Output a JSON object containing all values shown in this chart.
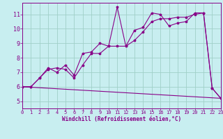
{
  "xlabel": "Windchill (Refroidissement éolien,°C)",
  "ylabel": "",
  "background_color": "#c8eef0",
  "grid_color": "#a0d0c8",
  "line_color": "#880088",
  "xlim": [
    0,
    23
  ],
  "ylim": [
    4.5,
    11.8
  ],
  "xticks": [
    0,
    1,
    2,
    3,
    4,
    5,
    6,
    7,
    8,
    9,
    10,
    11,
    12,
    13,
    14,
    15,
    16,
    17,
    18,
    19,
    20,
    21,
    22,
    23
  ],
  "yticks": [
    5,
    6,
    7,
    8,
    9,
    10,
    11
  ],
  "series1_x": [
    0,
    1,
    2,
    3,
    4,
    5,
    6,
    7,
    8,
    9,
    10,
    11,
    12,
    13,
    14,
    15,
    16,
    17,
    18,
    19,
    20,
    21,
    22,
    23
  ],
  "series1_y": [
    6.0,
    6.0,
    6.6,
    7.3,
    7.0,
    7.5,
    6.8,
    8.3,
    8.4,
    9.0,
    8.8,
    11.5,
    8.8,
    9.9,
    10.1,
    11.1,
    11.0,
    10.2,
    10.4,
    10.5,
    11.1,
    11.1,
    5.9,
    5.2
  ],
  "series2_x": [
    0,
    1,
    2,
    3,
    4,
    5,
    6,
    7,
    8,
    9,
    10,
    11,
    12,
    13,
    14,
    15,
    16,
    17,
    18,
    19,
    20,
    21,
    22,
    23
  ],
  "series2_y": [
    6.0,
    6.0,
    6.6,
    7.2,
    7.3,
    7.2,
    6.6,
    7.5,
    8.3,
    8.3,
    8.8,
    8.8,
    8.8,
    9.2,
    9.8,
    10.5,
    10.7,
    10.7,
    10.8,
    10.8,
    11.0,
    11.1,
    5.9,
    5.2
  ],
  "series3_x": [
    0,
    23
  ],
  "series3_y": [
    6.0,
    5.2
  ]
}
